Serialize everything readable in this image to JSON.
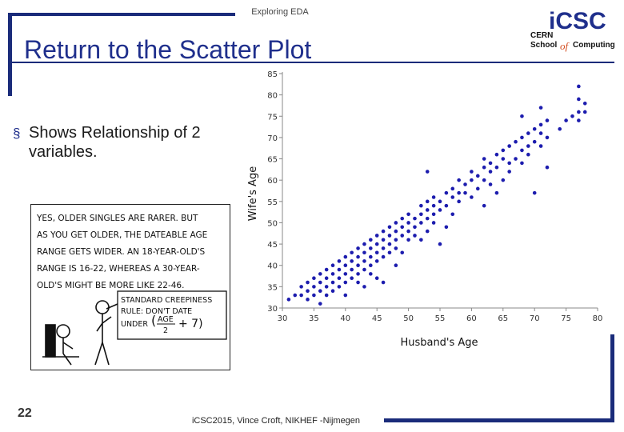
{
  "header": {
    "kicker": "Exploring EDA",
    "title": "Return to the Scatter Plot"
  },
  "logo": {
    "line1": "iCSC",
    "line2": "CERN",
    "line3": "School",
    "line4a": "of",
    "line4b": "Computing"
  },
  "bullet": {
    "marker": "§",
    "text": "Shows Relationship of 2 variables."
  },
  "comic": {
    "caption_lines": [
      "YES, OLDER SINGLES ARE RARER. BUT",
      "AS YOU GET OLDER, THE DATEABLE AGE",
      "RANGE GETS WIDER. AN 18-YEAR-OLD'S",
      "RANGE IS 16-22, WHEREAS A 30-YEAR-",
      "OLD'S MIGHT BE MORE LIKE 22-46."
    ],
    "rule_lines": [
      "STANDARD CREEPINESS",
      "RULE: DON'T DATE",
      "UNDER"
    ],
    "formula_top": "AGE",
    "formula_bottom": "2",
    "formula_tail": "+ 7)"
  },
  "chart_data": {
    "type": "scatter",
    "xlabel": "Husband's Age",
    "ylabel": "Wife's Age",
    "xlim": [
      30,
      80
    ],
    "ylim": [
      30,
      85
    ],
    "xticks": [
      "30",
      "35",
      "40",
      "45",
      "50",
      "55",
      "60",
      "65",
      "70",
      "75",
      "80"
    ],
    "yticks": [
      "30",
      "35",
      "40",
      "45",
      "50",
      "55",
      "60",
      "65",
      "70",
      "75",
      "80",
      "85"
    ],
    "point_color": "#1c1cae",
    "points": [
      [
        31,
        32
      ],
      [
        32,
        33
      ],
      [
        33,
        33
      ],
      [
        33,
        35
      ],
      [
        34,
        32
      ],
      [
        34,
        34
      ],
      [
        34,
        36
      ],
      [
        35,
        33
      ],
      [
        35,
        35
      ],
      [
        35,
        37
      ],
      [
        36,
        31
      ],
      [
        36,
        34
      ],
      [
        36,
        36
      ],
      [
        36,
        38
      ],
      [
        37,
        33
      ],
      [
        37,
        35
      ],
      [
        37,
        37
      ],
      [
        37,
        39
      ],
      [
        38,
        34
      ],
      [
        38,
        36
      ],
      [
        38,
        38
      ],
      [
        38,
        40
      ],
      [
        39,
        35
      ],
      [
        39,
        37
      ],
      [
        39,
        39
      ],
      [
        39,
        41
      ],
      [
        40,
        33
      ],
      [
        40,
        36
      ],
      [
        40,
        38
      ],
      [
        40,
        40
      ],
      [
        40,
        42
      ],
      [
        41,
        37
      ],
      [
        41,
        39
      ],
      [
        41,
        41
      ],
      [
        41,
        43
      ],
      [
        42,
        36
      ],
      [
        42,
        38
      ],
      [
        42,
        40
      ],
      [
        42,
        42
      ],
      [
        42,
        44
      ],
      [
        43,
        35
      ],
      [
        43,
        39
      ],
      [
        43,
        41
      ],
      [
        43,
        43
      ],
      [
        43,
        45
      ],
      [
        44,
        38
      ],
      [
        44,
        40
      ],
      [
        44,
        42
      ],
      [
        44,
        44
      ],
      [
        44,
        46
      ],
      [
        45,
        37
      ],
      [
        45,
        41
      ],
      [
        45,
        43
      ],
      [
        45,
        45
      ],
      [
        45,
        47
      ],
      [
        46,
        42
      ],
      [
        46,
        44
      ],
      [
        46,
        46
      ],
      [
        46,
        48
      ],
      [
        46,
        36
      ],
      [
        47,
        43
      ],
      [
        47,
        45
      ],
      [
        47,
        47
      ],
      [
        47,
        49
      ],
      [
        48,
        40
      ],
      [
        48,
        44
      ],
      [
        48,
        46
      ],
      [
        48,
        48
      ],
      [
        48,
        50
      ],
      [
        49,
        43
      ],
      [
        49,
        47
      ],
      [
        49,
        49
      ],
      [
        49,
        51
      ],
      [
        50,
        46
      ],
      [
        50,
        48
      ],
      [
        50,
        50
      ],
      [
        50,
        52
      ],
      [
        51,
        47
      ],
      [
        51,
        49
      ],
      [
        51,
        51
      ],
      [
        52,
        46
      ],
      [
        52,
        50
      ],
      [
        52,
        52
      ],
      [
        52,
        54
      ],
      [
        53,
        48
      ],
      [
        53,
        51
      ],
      [
        53,
        53
      ],
      [
        53,
        55
      ],
      [
        53,
        62
      ],
      [
        54,
        50
      ],
      [
        54,
        52
      ],
      [
        54,
        54
      ],
      [
        54,
        56
      ],
      [
        55,
        45
      ],
      [
        55,
        53
      ],
      [
        55,
        55
      ],
      [
        56,
        49
      ],
      [
        56,
        54
      ],
      [
        56,
        57
      ],
      [
        57,
        52
      ],
      [
        57,
        56
      ],
      [
        57,
        58
      ],
      [
        58,
        55
      ],
      [
        58,
        57
      ],
      [
        58,
        60
      ],
      [
        59,
        57
      ],
      [
        59,
        59
      ],
      [
        60,
        56
      ],
      [
        60,
        60
      ],
      [
        60,
        62
      ],
      [
        61,
        58
      ],
      [
        61,
        61
      ],
      [
        62,
        54
      ],
      [
        62,
        60
      ],
      [
        62,
        63
      ],
      [
        62,
        65
      ],
      [
        63,
        59
      ],
      [
        63,
        62
      ],
      [
        63,
        64
      ],
      [
        64,
        57
      ],
      [
        64,
        63
      ],
      [
        64,
        66
      ],
      [
        65,
        60
      ],
      [
        65,
        65
      ],
      [
        65,
        67
      ],
      [
        66,
        62
      ],
      [
        66,
        64
      ],
      [
        66,
        68
      ],
      [
        67,
        65
      ],
      [
        67,
        69
      ],
      [
        68,
        64
      ],
      [
        68,
        67
      ],
      [
        68,
        70
      ],
      [
        68,
        75
      ],
      [
        69,
        66
      ],
      [
        69,
        68
      ],
      [
        69,
        71
      ],
      [
        70,
        57
      ],
      [
        70,
        69
      ],
      [
        70,
        72
      ],
      [
        71,
        68
      ],
      [
        71,
        71
      ],
      [
        71,
        73
      ],
      [
        71,
        77
      ],
      [
        72,
        63
      ],
      [
        72,
        70
      ],
      [
        72,
        74
      ],
      [
        74,
        72
      ],
      [
        75,
        74
      ],
      [
        76,
        75
      ],
      [
        77,
        74
      ],
      [
        77,
        76
      ],
      [
        77,
        79
      ],
      [
        77,
        82
      ],
      [
        78,
        76
      ],
      [
        78,
        78
      ]
    ]
  }
}
